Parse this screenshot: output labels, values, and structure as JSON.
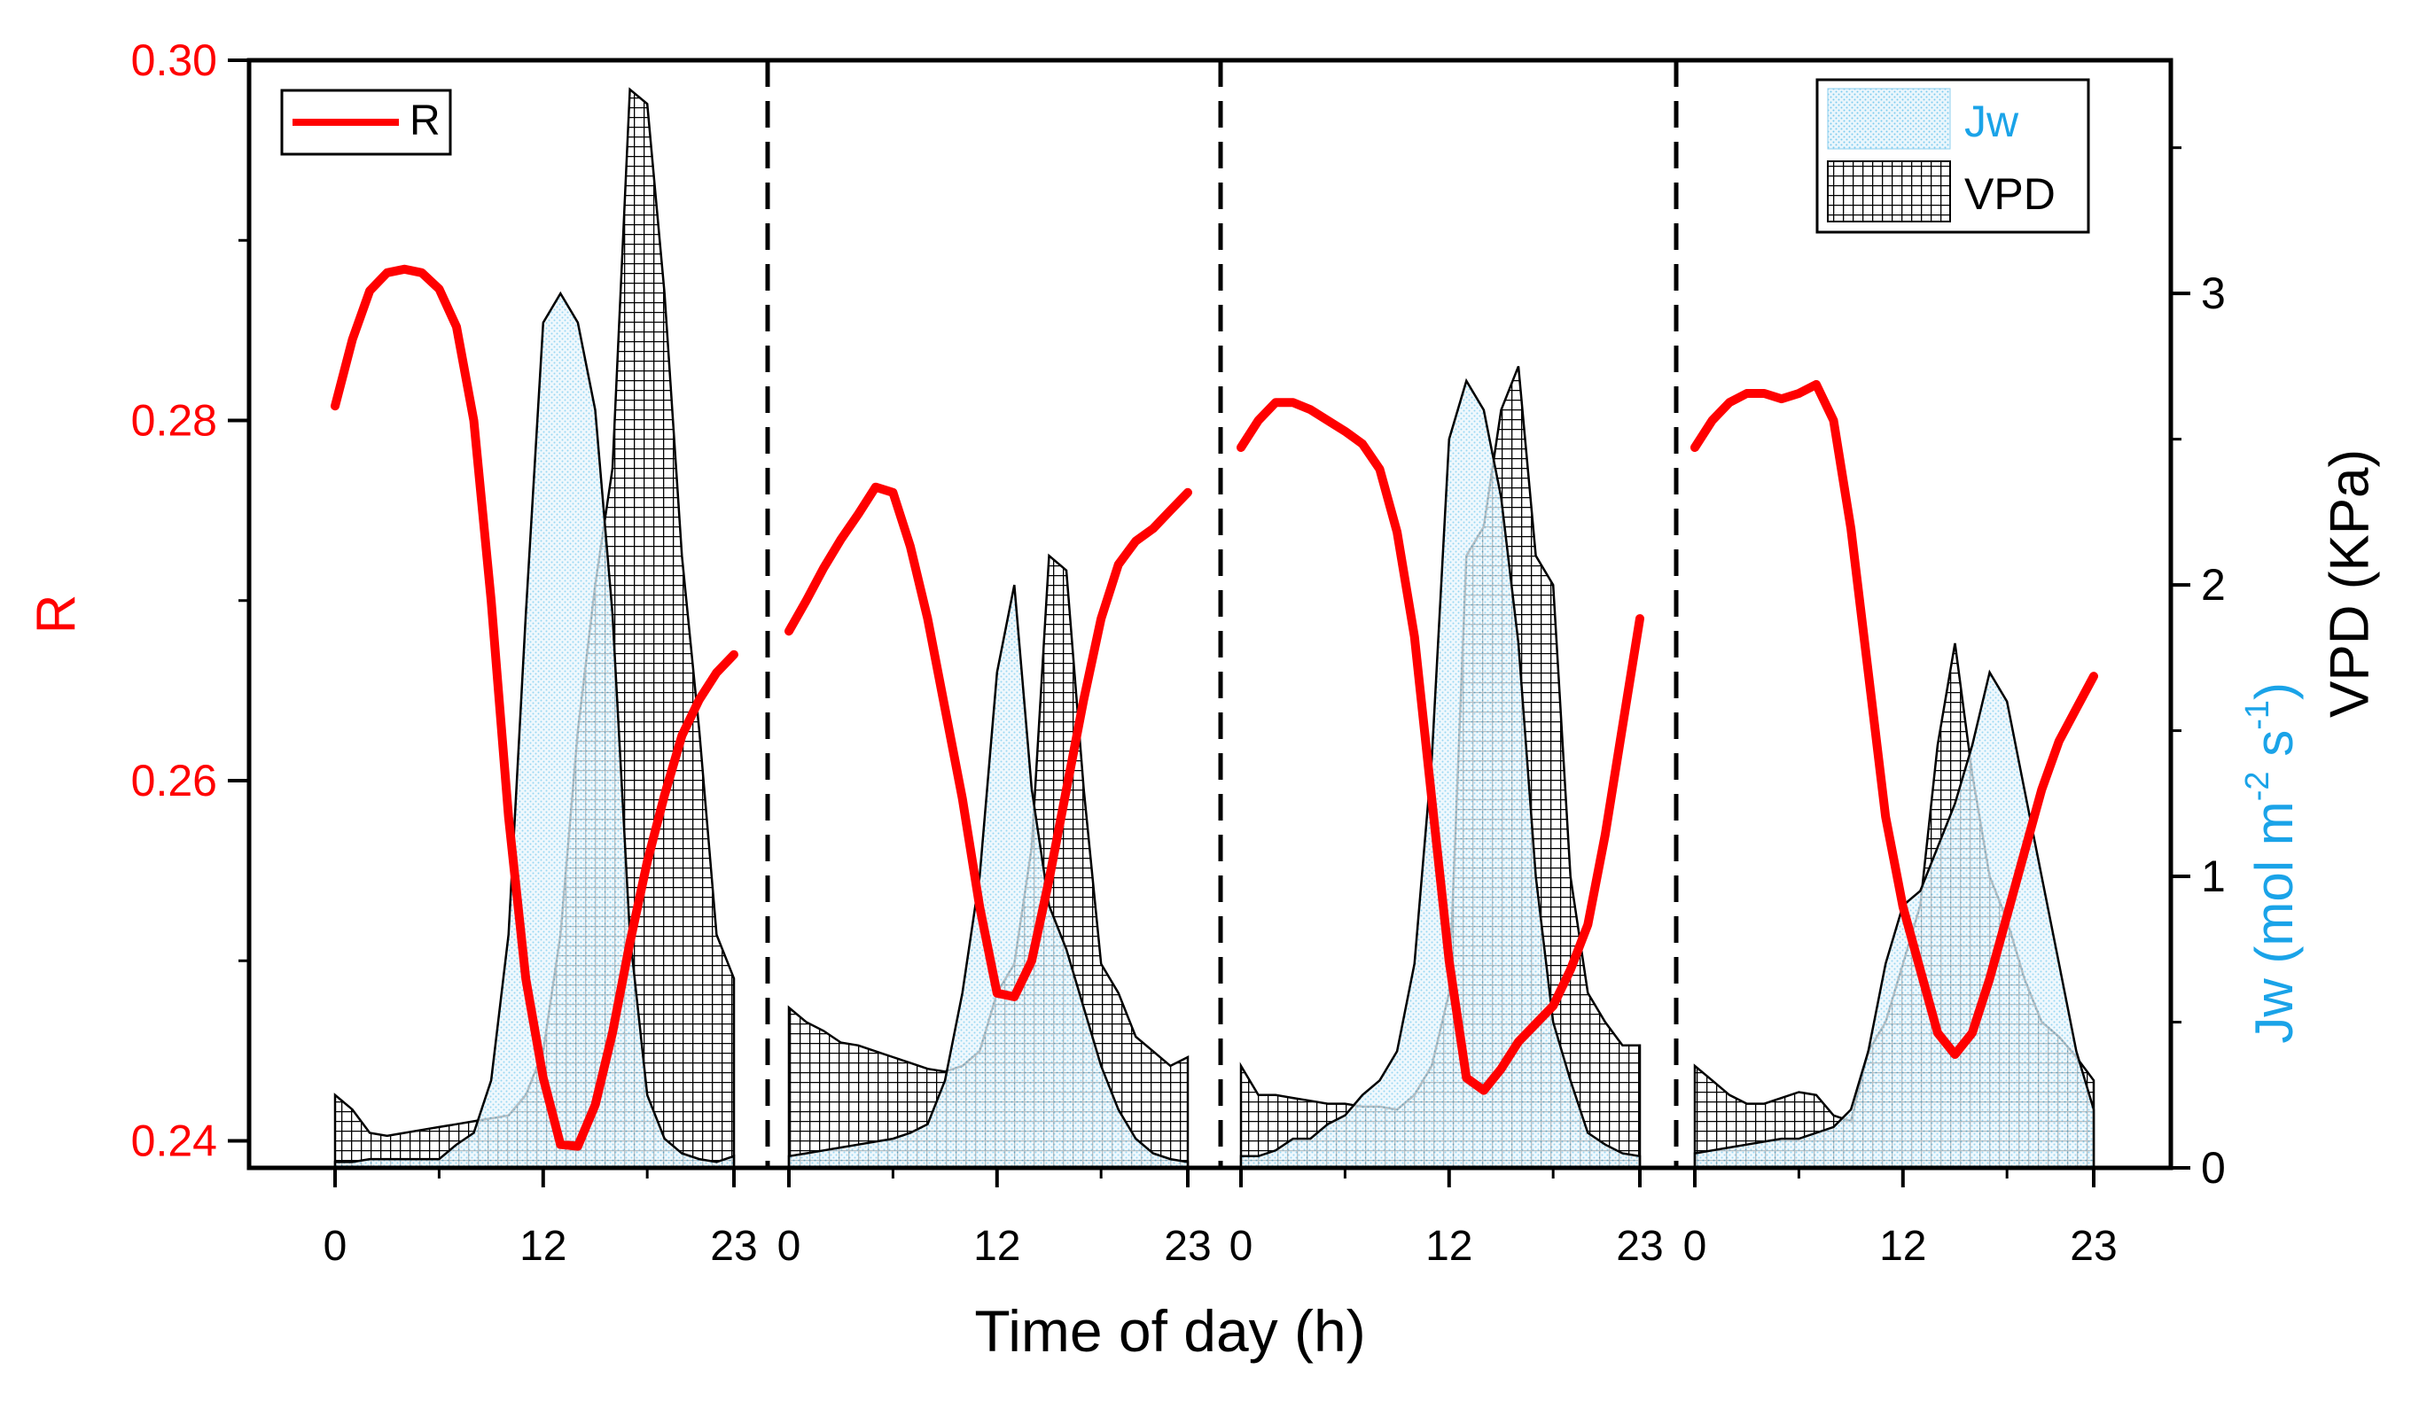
{
  "colors": {
    "r_line": "#ff0000",
    "jw_label": "#1aa3e8",
    "jw_pattern": "#9ed8f2",
    "grid_pattern": "#000000",
    "axis": "#000000"
  },
  "chart_data": {
    "type": "line",
    "x_axis_title": "Time of day (h)",
    "left_axis": {
      "title": "R",
      "range": [
        0.2385,
        0.3
      ],
      "ticks": [
        0.24,
        0.26,
        0.28,
        0.3
      ],
      "tick_labels": [
        "0.24",
        "0.26",
        "0.28",
        "0.30"
      ]
    },
    "right_axis": {
      "title_jw": "Jw (mol m-2 s-1)",
      "title_jw_parts": {
        "base": "Jw (mol m",
        "exp1": "-2",
        "mid": " s",
        "exp2": "-1",
        "end": ")"
      },
      "title_vpd": "VPD (KPa)",
      "range": [
        0,
        3.8
      ],
      "ticks": [
        0,
        1,
        2,
        3
      ],
      "tick_labels": [
        "0",
        "1",
        "2",
        "3"
      ]
    },
    "panel_x_ticks": [
      0,
      12,
      23
    ],
    "panel_x_tick_labels": [
      "0",
      "12",
      "23"
    ],
    "hours": [
      0,
      1,
      2,
      3,
      4,
      5,
      6,
      7,
      8,
      9,
      10,
      11,
      12,
      13,
      14,
      15,
      16,
      17,
      18,
      19,
      20,
      21,
      22,
      23
    ],
    "legend_left": [
      {
        "label": "R",
        "kind": "line"
      }
    ],
    "legend_right": [
      {
        "label": "Jw",
        "kind": "dotted-fill"
      },
      {
        "label": "VPD",
        "kind": "grid-fill"
      }
    ],
    "panels": [
      {
        "R": [
          0.2808,
          0.2845,
          0.2872,
          0.2882,
          0.2884,
          0.2882,
          0.2873,
          0.2852,
          0.28,
          0.27,
          0.258,
          0.249,
          0.2435,
          0.2398,
          0.2397,
          0.242,
          0.246,
          0.251,
          0.2555,
          0.2592,
          0.2625,
          0.2645,
          0.266,
          0.267
        ],
        "Jw": [
          0.02,
          0.02,
          0.03,
          0.03,
          0.03,
          0.03,
          0.03,
          0.08,
          0.12,
          0.3,
          0.8,
          1.9,
          2.9,
          3.0,
          2.9,
          2.6,
          1.9,
          0.8,
          0.25,
          0.1,
          0.05,
          0.03,
          0.02,
          0.04
        ],
        "VPD": [
          0.25,
          0.2,
          0.12,
          0.11,
          0.12,
          0.13,
          0.14,
          0.15,
          0.16,
          0.17,
          0.18,
          0.25,
          0.4,
          0.8,
          1.5,
          2.0,
          2.4,
          3.7,
          3.65,
          3.0,
          2.1,
          1.5,
          0.8,
          0.65
        ]
      },
      {
        "R": [
          0.2683,
          0.27,
          0.2718,
          0.2734,
          0.2748,
          0.2763,
          0.276,
          0.273,
          0.269,
          0.264,
          0.259,
          0.253,
          0.2482,
          0.248,
          0.25,
          0.2545,
          0.2595,
          0.2645,
          0.269,
          0.272,
          0.2733,
          0.274,
          0.275,
          0.276
        ],
        "Jw": [
          0.04,
          0.05,
          0.06,
          0.07,
          0.08,
          0.09,
          0.1,
          0.12,
          0.15,
          0.3,
          0.6,
          1.0,
          1.7,
          2.0,
          1.3,
          0.9,
          0.75,
          0.55,
          0.35,
          0.2,
          0.1,
          0.05,
          0.03,
          0.02
        ],
        "VPD": [
          0.55,
          0.5,
          0.47,
          0.43,
          0.42,
          0.4,
          0.38,
          0.36,
          0.34,
          0.33,
          0.35,
          0.4,
          0.6,
          0.7,
          1.1,
          2.1,
          2.05,
          1.3,
          0.7,
          0.6,
          0.45,
          0.4,
          0.35,
          0.38
        ]
      },
      {
        "R": [
          0.2785,
          0.28,
          0.281,
          0.281,
          0.2806,
          0.28,
          0.2794,
          0.2787,
          0.2773,
          0.2738,
          0.268,
          0.259,
          0.25,
          0.2435,
          0.2428,
          0.244,
          0.2455,
          0.2465,
          0.2475,
          0.2495,
          0.252,
          0.257,
          0.263,
          0.269
        ],
        "Jw": [
          0.04,
          0.04,
          0.06,
          0.1,
          0.1,
          0.15,
          0.18,
          0.25,
          0.3,
          0.4,
          0.7,
          1.4,
          2.5,
          2.7,
          2.6,
          2.3,
          1.8,
          1.0,
          0.5,
          0.3,
          0.12,
          0.08,
          0.05,
          0.04
        ],
        "VPD": [
          0.35,
          0.25,
          0.25,
          0.24,
          0.23,
          0.22,
          0.22,
          0.21,
          0.21,
          0.2,
          0.25,
          0.35,
          0.6,
          2.1,
          2.2,
          2.6,
          2.75,
          2.1,
          2.0,
          1.0,
          0.6,
          0.5,
          0.42,
          0.42
        ]
      },
      {
        "R": [
          0.2785,
          0.28,
          0.281,
          0.2815,
          0.2815,
          0.2812,
          0.2815,
          0.282,
          0.28,
          0.274,
          0.266,
          0.258,
          0.253,
          0.2495,
          0.246,
          0.2448,
          0.246,
          0.249,
          0.2525,
          0.256,
          0.2595,
          0.2622,
          0.264,
          0.2658
        ],
        "Jw": [
          0.05,
          0.06,
          0.07,
          0.08,
          0.09,
          0.1,
          0.1,
          0.12,
          0.14,
          0.2,
          0.4,
          0.7,
          0.9,
          0.95,
          1.1,
          1.25,
          1.45,
          1.7,
          1.6,
          1.3,
          1.0,
          0.7,
          0.4,
          0.2
        ],
        "VPD": [
          0.35,
          0.3,
          0.25,
          0.22,
          0.22,
          0.24,
          0.26,
          0.25,
          0.18,
          0.16,
          0.4,
          0.5,
          0.7,
          0.9,
          1.45,
          1.8,
          1.35,
          1.0,
          0.85,
          0.65,
          0.5,
          0.45,
          0.38,
          0.3
        ]
      }
    ]
  }
}
